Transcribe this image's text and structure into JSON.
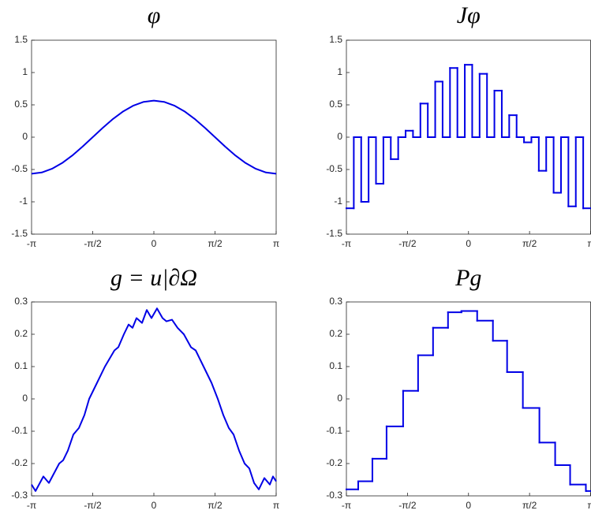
{
  "chart_data": [
    {
      "type": "line",
      "title": "φ",
      "color": "#0000e6",
      "x": [
        -3.1416,
        -2.8798,
        -2.618,
        -2.3562,
        -2.0944,
        -1.8326,
        -1.5708,
        -1.309,
        -1.0472,
        -0.7854,
        -0.5236,
        -0.2618,
        0,
        0.2618,
        0.5236,
        0.7854,
        1.0472,
        1.309,
        1.5708,
        1.8326,
        2.0944,
        2.3562,
        2.618,
        2.8798,
        3.1416
      ],
      "values": [
        -0.565,
        -0.546,
        -0.489,
        -0.4,
        -0.283,
        -0.146,
        0,
        0.146,
        0.283,
        0.4,
        0.489,
        0.546,
        0.565,
        0.546,
        0.489,
        0.4,
        0.283,
        0.146,
        0,
        -0.146,
        -0.283,
        -0.4,
        -0.489,
        -0.546,
        -0.565
      ],
      "xlim": [
        -3.1416,
        3.1416
      ],
      "xticks": [
        {
          "value": -3.1416,
          "label": "-π"
        },
        {
          "value": -1.5708,
          "label": "-π/2"
        },
        0,
        {
          "value": 1.5708,
          "label": "π/2"
        },
        {
          "value": 3.1416,
          "label": "π"
        }
      ],
      "ylim": [
        -1.5,
        1.5
      ],
      "yticks": [
        -1.5,
        -1,
        -0.5,
        0,
        0.5,
        1,
        1.5
      ]
    },
    {
      "type": "step",
      "title": "Jφ",
      "color": "#0000e6",
      "edges": [
        -3.1416,
        -2.9512,
        -2.7608,
        -2.5704,
        -2.38,
        -2.1896,
        -1.9992,
        -1.8088,
        -1.6184,
        -1.428,
        -1.2376,
        -1.0472,
        -0.8568,
        -0.6664,
        -0.476,
        -0.2856,
        -0.0952,
        0.0952,
        0.2856,
        0.476,
        0.6664,
        0.8568,
        1.0472,
        1.2376,
        1.428,
        1.6184,
        1.8088,
        1.9992,
        2.1896,
        2.38,
        2.5704,
        2.7608,
        2.9512,
        3.1416
      ],
      "values": [
        -1.1,
        0,
        -1.0,
        0,
        -0.72,
        0,
        -0.34,
        0,
        0.1,
        0,
        0.52,
        0,
        0.86,
        0,
        1.07,
        0,
        1.12,
        0,
        0.98,
        0,
        0.72,
        0,
        0.34,
        0,
        -0.08,
        0,
        -0.52,
        0,
        -0.86,
        0,
        -1.07,
        0,
        -1.1
      ],
      "xlim": [
        -3.1416,
        3.1416
      ],
      "xticks": [
        {
          "value": -3.1416,
          "label": "-π"
        },
        {
          "value": -1.5708,
          "label": "-π/2"
        },
        0,
        {
          "value": 1.5708,
          "label": "π/2"
        },
        {
          "value": 3.1416,
          "label": "π"
        }
      ],
      "ylim": [
        -1.5,
        1.5
      ],
      "yticks": [
        -1.5,
        -1,
        -0.5,
        0,
        0.5,
        1,
        1.5
      ]
    },
    {
      "type": "line",
      "title": "g = u|∂Ω",
      "color": "#0000e6",
      "x": [
        -3.1416,
        -3.04,
        -2.838,
        -2.696,
        -2.432,
        -2.331,
        -2.209,
        -2.067,
        -1.925,
        -1.784,
        -1.662,
        -1.459,
        -1.257,
        -1.013,
        -0.912,
        -0.77,
        -0.649,
        -0.547,
        -0.446,
        -0.304,
        -0.182,
        -0.061,
        0.081,
        0.223,
        0.324,
        0.466,
        0.608,
        0.77,
        0.953,
        1.074,
        1.277,
        1.48,
        1.642,
        1.784,
        1.925,
        2.047,
        2.189,
        2.331,
        2.452,
        2.574,
        2.696,
        2.838,
        2.979,
        3.06,
        3.1416
      ],
      "values": [
        -0.265,
        -0.285,
        -0.24,
        -0.26,
        -0.2,
        -0.19,
        -0.16,
        -0.11,
        -0.09,
        -0.05,
        0.0,
        0.05,
        0.1,
        0.15,
        0.16,
        0.2,
        0.23,
        0.22,
        0.25,
        0.235,
        0.275,
        0.25,
        0.28,
        0.25,
        0.24,
        0.245,
        0.22,
        0.2,
        0.16,
        0.15,
        0.1,
        0.05,
        0.0,
        -0.05,
        -0.09,
        -0.11,
        -0.16,
        -0.2,
        -0.215,
        -0.26,
        -0.28,
        -0.245,
        -0.265,
        -0.24,
        -0.255
      ],
      "xlim": [
        -3.1416,
        3.1416
      ],
      "xticks": [
        {
          "value": -3.1416,
          "label": "-π"
        },
        {
          "value": -1.5708,
          "label": "-π/2"
        },
        0,
        {
          "value": 1.5708,
          "label": "π/2"
        },
        {
          "value": 3.1416,
          "label": "π"
        }
      ],
      "ylim": [
        -0.3,
        0.3
      ],
      "yticks": [
        -0.3,
        -0.2,
        -0.1,
        0,
        0.1,
        0.2,
        0.3
      ]
    },
    {
      "type": "step",
      "title": "Pg",
      "color": "#0000e6",
      "edges": [
        -3.1416,
        -2.8375,
        -2.4727,
        -2.1079,
        -1.6823,
        -1.2972,
        -0.9121,
        -0.527,
        -0.1824,
        0.223,
        0.6283,
        0.9931,
        1.3985,
        1.8241,
        2.2295,
        2.6146,
        3.02,
        3.1416
      ],
      "values": [
        -0.28,
        -0.255,
        -0.185,
        -0.085,
        0.025,
        0.135,
        0.22,
        0.268,
        0.272,
        0.242,
        0.18,
        0.083,
        -0.028,
        -0.135,
        -0.205,
        -0.265,
        -0.285
      ],
      "xlim": [
        -3.1416,
        3.1416
      ],
      "xticks": [
        {
          "value": -3.1416,
          "label": "-π"
        },
        {
          "value": -1.5708,
          "label": "-π/2"
        },
        0,
        {
          "value": 1.5708,
          "label": "π/2"
        },
        {
          "value": 3.1416,
          "label": "π"
        }
      ],
      "ylim": [
        -0.3,
        0.3
      ],
      "yticks": [
        -0.3,
        -0.2,
        -0.1,
        0,
        0.1,
        0.2,
        0.3
      ]
    }
  ]
}
